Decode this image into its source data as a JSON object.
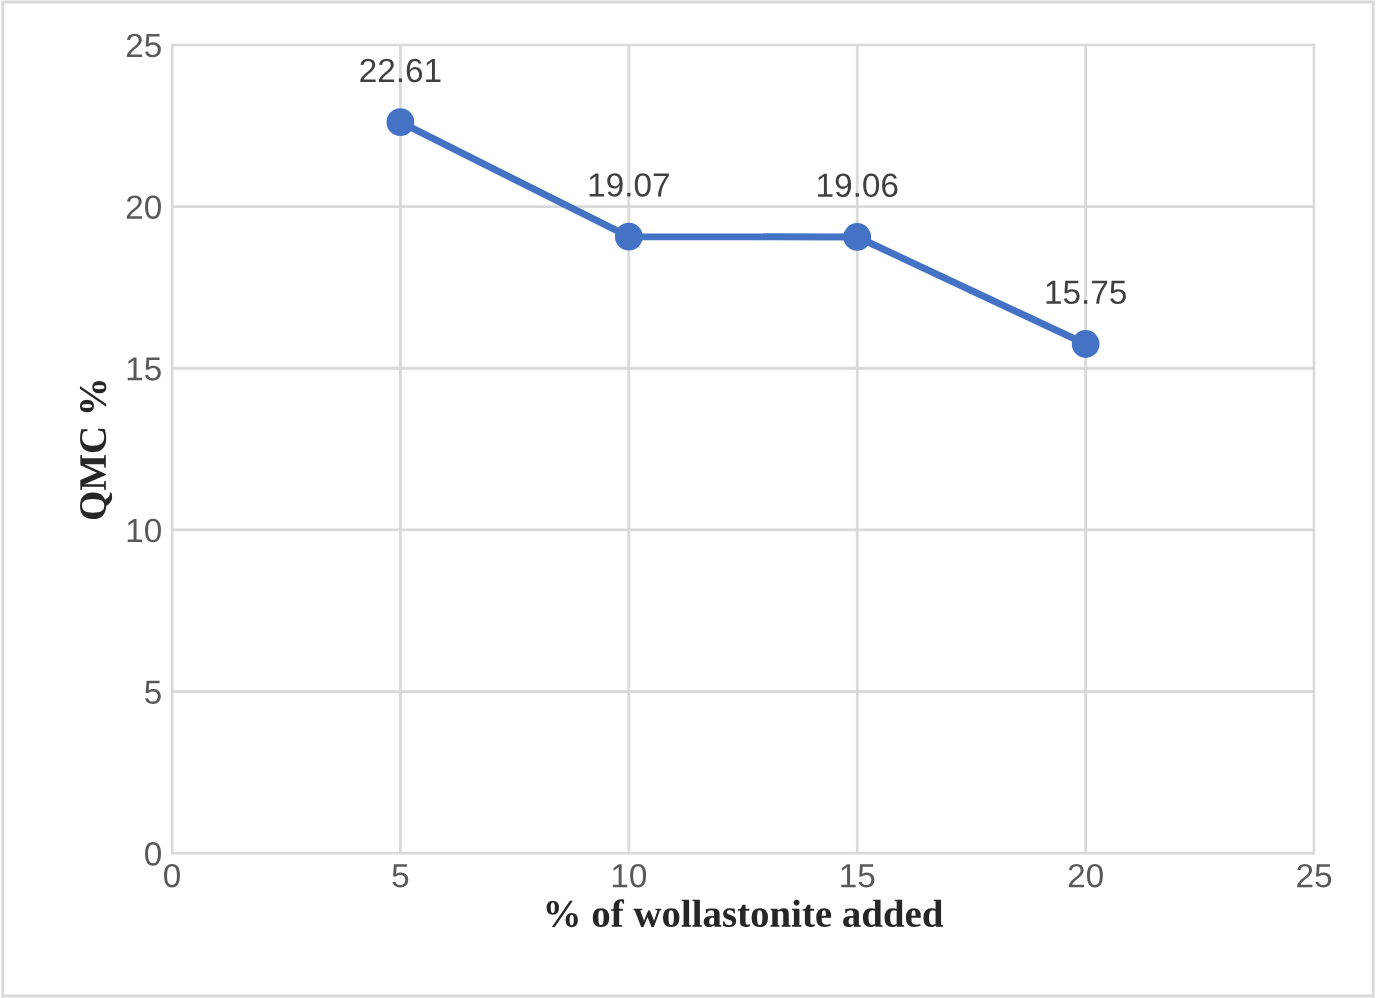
{
  "chart_data": {
    "type": "line",
    "xlabel": "% of wollastonite added",
    "ylabel": "QMC %",
    "x": [
      5,
      10,
      15,
      20
    ],
    "series": [
      {
        "color": "#4472c4",
        "values": [
          22.61,
          19.07,
          19.06,
          15.75
        ]
      }
    ],
    "xlim": [
      0,
      25
    ],
    "xticks": [
      0,
      5,
      10,
      15,
      20,
      25
    ],
    "ylim": [
      0,
      25
    ],
    "yticks": [
      0,
      5,
      10,
      15,
      20,
      25
    ],
    "grid": true,
    "marker": "circle",
    "line_style": "solid",
    "data_labels": true
  }
}
